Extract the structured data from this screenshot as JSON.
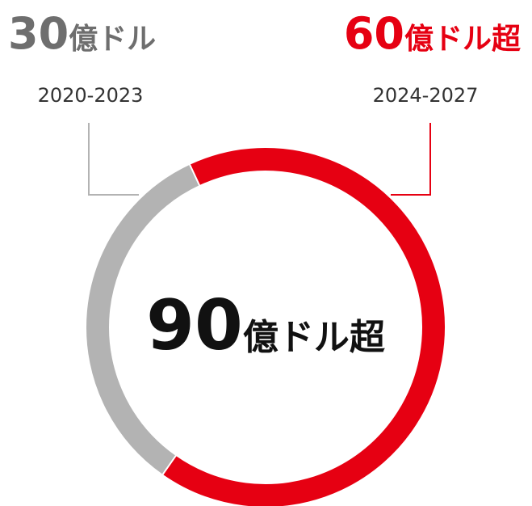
{
  "chart_data": {
    "type": "donut",
    "categories": [
      "2020-2023",
      "2024-2027"
    ],
    "values": [
      30,
      60
    ],
    "units": [
      "億ドル",
      "億ドル超"
    ],
    "colors": [
      "#b3b3b3",
      "#e60012"
    ],
    "total": 90,
    "total_unit": "億ドル超"
  }
}
